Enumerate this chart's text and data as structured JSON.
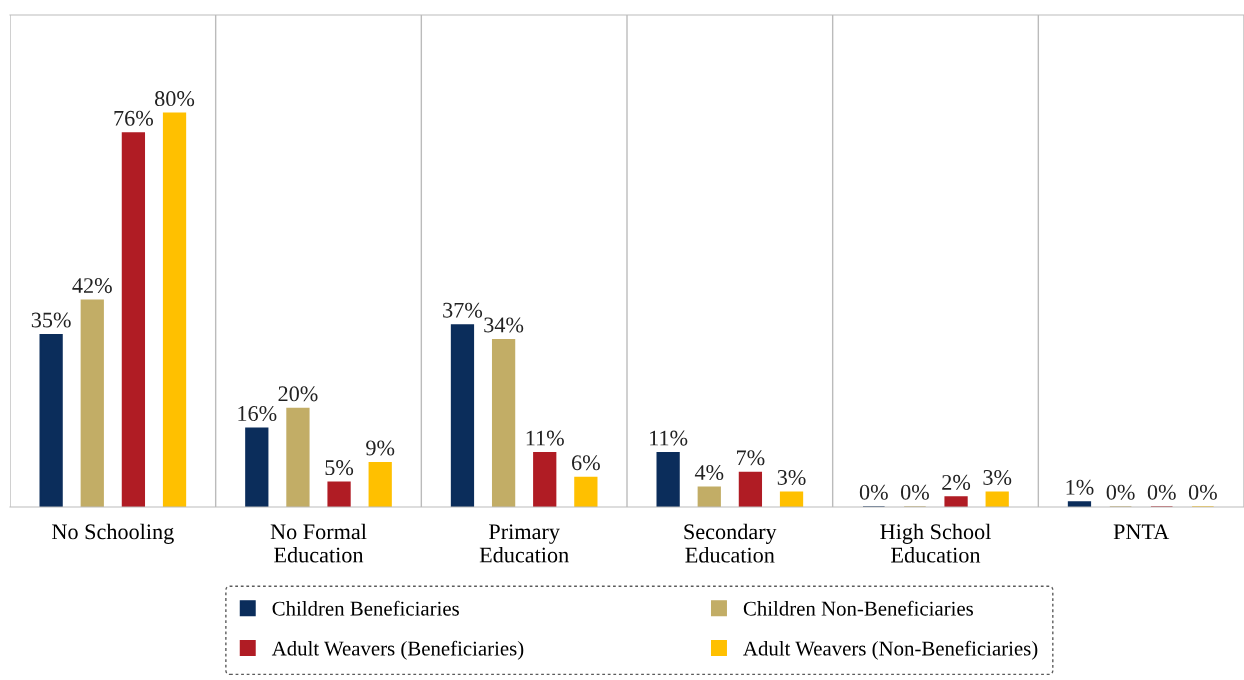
{
  "chart_data": {
    "type": "bar",
    "categories": [
      "No Schooling",
      "No Formal\nEducation",
      "Primary\nEducation",
      "Secondary\nEducation",
      "High School\nEducation",
      "PNTA"
    ],
    "series": [
      {
        "name": "Children Beneficiaries",
        "color": "#0b2d5b",
        "values": [
          35,
          16,
          37,
          11,
          0,
          1
        ],
        "value_labels": [
          "35%",
          "16%",
          "37%",
          "11%",
          "0%",
          "1%"
        ]
      },
      {
        "name": "Children Non-Beneficiaries",
        "color": "#c2ad66",
        "values": [
          42,
          20,
          34,
          4,
          0,
          0
        ],
        "value_labels": [
          "42%",
          "20%",
          "34%",
          "4%",
          "0%",
          "0%"
        ]
      },
      {
        "name": "Adult Weavers (Beneficiaries)",
        "color": "#b01c24",
        "values": [
          76,
          5,
          11,
          7,
          2,
          0
        ],
        "value_labels": [
          "76%",
          "5%",
          "11%",
          "7%",
          "2%",
          "0%"
        ]
      },
      {
        "name": "Adult Weavers (Non-Beneficiaries)",
        "color": "#ffc000",
        "values": [
          80,
          9,
          6,
          3,
          3,
          0
        ],
        "value_labels": [
          "80%",
          "9%",
          "6%",
          "3%",
          "3%",
          "0%"
        ]
      }
    ],
    "ylim": [
      0,
      100
    ],
    "tick_labels": "x",
    "grid": "x",
    "legend": "bottom"
  }
}
